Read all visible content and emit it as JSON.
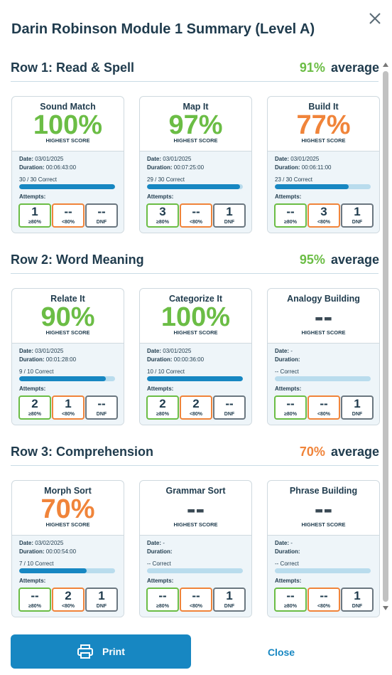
{
  "header": {
    "title": "Darin Robinson Module 1 Summary (Level A)"
  },
  "sections": [
    {
      "title": "Row 1: Read & Spell",
      "average": "91%",
      "average_label": "average",
      "cards": [
        {
          "name": "Sound Match",
          "score": "100%",
          "score_label": "HIGHEST SCORE",
          "date_label": "Date:",
          "date": "03/01/2025",
          "duration_label": "Duration:",
          "duration": "00:06:43:00",
          "correct": "30 / 30 Correct",
          "attempts_label": "Attempts:",
          "attempts": [
            {
              "count": "1",
              "label": "≥80%"
            },
            {
              "count": "--",
              "label": "<80%"
            },
            {
              "count": "--",
              "label": "DNF"
            }
          ]
        },
        {
          "name": "Map It",
          "score": "97%",
          "score_label": "HIGHEST SCORE",
          "date_label": "Date:",
          "date": "03/01/2025",
          "duration_label": "Duration:",
          "duration": "00:07:25:00",
          "correct": "29 / 30 Correct",
          "attempts_label": "Attempts:",
          "attempts": [
            {
              "count": "3",
              "label": "≥80%"
            },
            {
              "count": "--",
              "label": "<80%"
            },
            {
              "count": "1",
              "label": "DNF"
            }
          ]
        },
        {
          "name": "Build It",
          "score": "77%",
          "score_label": "HIGHEST SCORE",
          "date_label": "Date:",
          "date": "03/01/2025",
          "duration_label": "Duration:",
          "duration": "00:06:11:00",
          "correct": "23 / 30 Correct",
          "attempts_label": "Attempts:",
          "attempts": [
            {
              "count": "--",
              "label": "≥80%"
            },
            {
              "count": "3",
              "label": "<80%"
            },
            {
              "count": "1",
              "label": "DNF"
            }
          ]
        }
      ]
    },
    {
      "title": "Row 2: Word Meaning",
      "average": "95%",
      "average_label": "average",
      "cards": [
        {
          "name": "Relate It",
          "score": "90%",
          "score_label": "HIGHEST SCORE",
          "date_label": "Date:",
          "date": "03/01/2025",
          "duration_label": "Duration:",
          "duration": "00:01:28:00",
          "correct": "9 / 10 Correct",
          "attempts_label": "Attempts:",
          "attempts": [
            {
              "count": "2",
              "label": "≥80%"
            },
            {
              "count": "1",
              "label": "<80%"
            },
            {
              "count": "--",
              "label": "DNF"
            }
          ]
        },
        {
          "name": "Categorize It",
          "score": "100%",
          "score_label": "HIGHEST SCORE",
          "date_label": "Date:",
          "date": "03/01/2025",
          "duration_label": "Duration:",
          "duration": "00:00:36:00",
          "correct": "10 / 10 Correct",
          "attempts_label": "Attempts:",
          "attempts": [
            {
              "count": "2",
              "label": "≥80%"
            },
            {
              "count": "2",
              "label": "<80%"
            },
            {
              "count": "--",
              "label": "DNF"
            }
          ]
        },
        {
          "name": "Analogy Building",
          "score": "--",
          "score_label": "HIGHEST SCORE",
          "date_label": "Date:",
          "date": "-",
          "duration_label": "Duration:",
          "correct": "-- Correct",
          "attempts_label": "Attempts:",
          "attempts": [
            {
              "count": "--",
              "label": "≥80%"
            },
            {
              "count": "--",
              "label": "<80%"
            },
            {
              "count": "1",
              "label": "DNF"
            }
          ]
        }
      ]
    },
    {
      "title": "Row 3: Comprehension",
      "average": "70%",
      "average_label": "average",
      "cards": [
        {
          "name": "Morph Sort",
          "score": "70%",
          "score_label": "HIGHEST SCORE",
          "date_label": "Date:",
          "date": "03/02/2025",
          "duration_label": "Duration:",
          "duration": "00:00:54:00",
          "correct": "7 / 10 Correct",
          "attempts_label": "Attempts:",
          "attempts": [
            {
              "count": "--",
              "label": "≥80%"
            },
            {
              "count": "2",
              "label": "<80%"
            },
            {
              "count": "1",
              "label": "DNF"
            }
          ]
        },
        {
          "name": "Grammar Sort",
          "score": "--",
          "score_label": "HIGHEST SCORE",
          "date_label": "Date:",
          "date": "-",
          "duration_label": "Duration:",
          "correct": "-- Correct",
          "attempts_label": "Attempts:",
          "attempts": [
            {
              "count": "--",
              "label": "≥80%"
            },
            {
              "count": "--",
              "label": "<80%"
            },
            {
              "count": "1",
              "label": "DNF"
            }
          ]
        },
        {
          "name": "Phrase Building",
          "score": "--",
          "score_label": "HIGHEST SCORE",
          "date_label": "Date:",
          "date": "-",
          "duration_label": "Duration:",
          "correct": "-- Correct",
          "attempts_label": "Attempts:",
          "attempts": [
            {
              "count": "--",
              "label": "≥80%"
            },
            {
              "count": "--",
              "label": "<80%"
            },
            {
              "count": "1",
              "label": "DNF"
            }
          ]
        }
      ]
    }
  ],
  "footer": {
    "print": "Print",
    "close": "Close"
  }
}
